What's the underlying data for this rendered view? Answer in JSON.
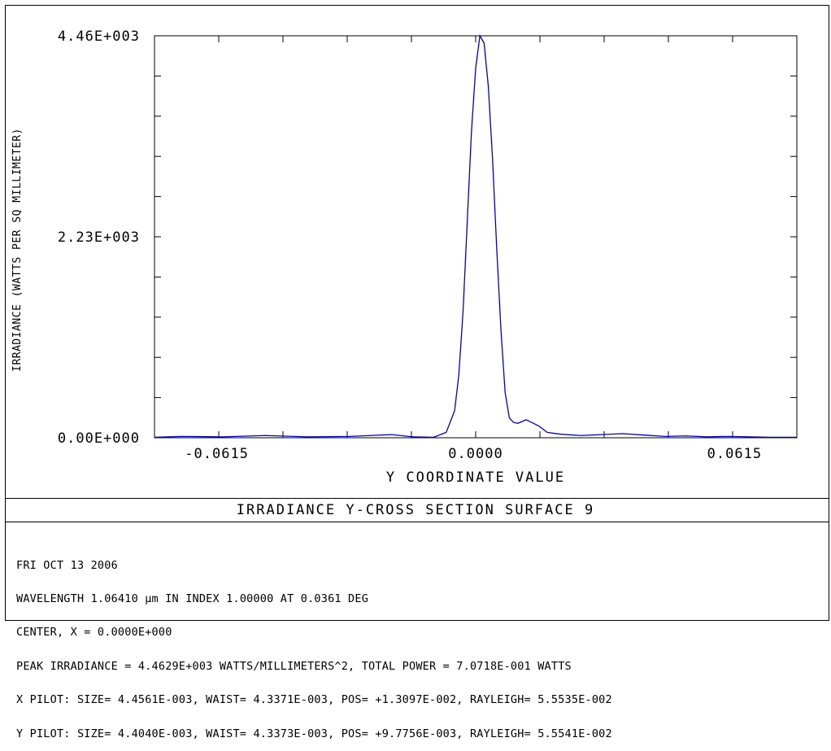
{
  "chart_data": {
    "type": "line",
    "title": "IRRADIANCE Y-CROSS SECTION SURFACE 9",
    "xlabel": "Y COORDINATE VALUE",
    "ylabel": "IRRADIANCE (WATTS PER SQ MILLIMETER)",
    "xlim": [
      -0.0763,
      0.0763
    ],
    "ylim": [
      0,
      4460
    ],
    "x_ticks": [
      "-0.0615",
      "0.0000",
      "0.0615"
    ],
    "y_ticks": [
      "0.00E+000",
      "2.23E+003",
      "4.46E+003"
    ],
    "line_color": "#0000cc",
    "grid": false,
    "series": [
      {
        "x": [
          -0.0763,
          -0.07,
          -0.06,
          -0.05,
          -0.04,
          -0.03,
          -0.02,
          -0.015,
          -0.01,
          -0.007,
          -0.005,
          -0.004,
          -0.003,
          -0.002,
          -0.001,
          0.0,
          0.001,
          0.002,
          0.003,
          0.004,
          0.005,
          0.006,
          0.007,
          0.008,
          0.009,
          0.01,
          0.012,
          0.015,
          0.017,
          0.02,
          0.025,
          0.03,
          0.035,
          0.04,
          0.045,
          0.05,
          0.055,
          0.06,
          0.065,
          0.07,
          0.0763
        ],
        "y": [
          5,
          15,
          10,
          25,
          10,
          15,
          35,
          10,
          5,
          60,
          300,
          700,
          1400,
          2400,
          3400,
          4100,
          4460,
          4380,
          3900,
          3100,
          2100,
          1200,
          500,
          220,
          170,
          160,
          200,
          130,
          60,
          40,
          25,
          35,
          45,
          30,
          15,
          20,
          10,
          15,
          10,
          5,
          5
        ]
      }
    ]
  },
  "info": {
    "date": "FRI OCT 13 2006",
    "wavelength": "WAVELENGTH 1.06410 µm IN INDEX 1.00000 AT 0.0361 DEG",
    "center": "CENTER, X = 0.0000E+000",
    "peak": "PEAK IRRADIANCE = 4.4629E+003 WATTS/MILLIMETERS^2, TOTAL POWER = 7.0718E-001 WATTS",
    "x_pilot": "X PILOT: SIZE= 4.4561E-003, WAIST= 4.3371E-003, POS= +1.3097E-002, RAYLEIGH= 5.5535E-002",
    "y_pilot": "Y PILOT: SIZE= 4.4040E-003, WAIST= 4.3373E-003, POS= +9.7756E-003, RAYLEIGH= 5.5541E-002"
  }
}
